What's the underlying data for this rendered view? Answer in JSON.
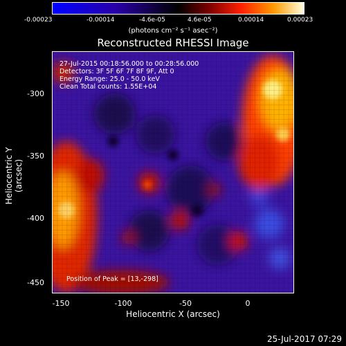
{
  "colorbar": {
    "ticks": [
      "-0.00023",
      "-0.00014",
      "-4.6e-05",
      "4.6e-05",
      "0.00014",
      "0.00023"
    ],
    "unit_line": "(photons cm⁻² s⁻¹ asec⁻²)"
  },
  "title": "Reconstructed RHESSI Image",
  "annotations": {
    "time_range": "27-Jul-2015 00:18:56.000 to 00:28:56.000",
    "detectors": "Detectors: 3F 5F 6F 7F 8F 9F, Att 0",
    "energy": "Energy Range: 25.0 - 50.0 keV",
    "method": "Clean     Total counts: 1.55E+04",
    "peak": "Position of Peak = [13,-298]"
  },
  "axes": {
    "xlabel": "Heliocentric X (arcsec)",
    "ylabel": "Heliocentric Y (arcsec)",
    "xticks": [
      "-150",
      "-100",
      "-50",
      "0"
    ],
    "yticks": [
      "-300",
      "-350",
      "-400",
      "-450"
    ]
  },
  "timestamp": "25-Jul-2017 07:29",
  "colors": {
    "background": "#000000",
    "text": "#ffffff"
  }
}
